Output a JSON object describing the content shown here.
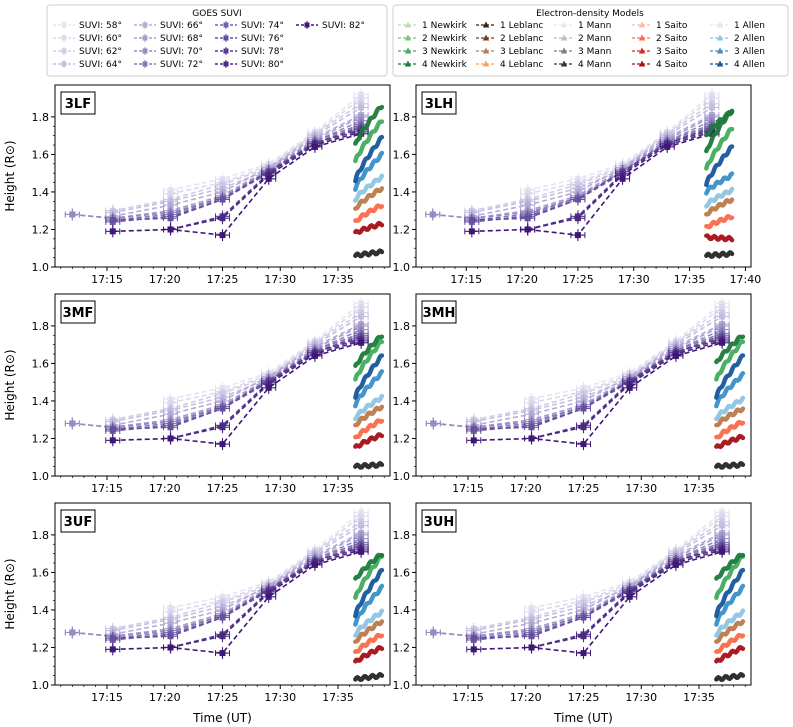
{
  "figure": {
    "xlabel": "Time (UT)",
    "ylabel": "Height (R⊙)"
  },
  "legend_suvi": {
    "title": "GOES SUVI",
    "entries": [
      "SUVI: 58°",
      "SUVI: 60°",
      "SUVI: 62°",
      "SUVI: 64°",
      "SUVI: 66°",
      "SUVI: 68°",
      "SUVI: 70°",
      "SUVI: 72°",
      "SUVI: 74°",
      "SUVI: 76°",
      "SUVI: 78°",
      "SUVI: 80°",
      "SUVI: 82°"
    ],
    "colors": [
      "#e6e3f2",
      "#dcd8ee",
      "#d0cbe7",
      "#c3bde0",
      "#b4acd7",
      "#a59ccd",
      "#958ac2",
      "#8575b6",
      "#7561a9",
      "#664f9c",
      "#57398d",
      "#4b2882",
      "#3f1777"
    ]
  },
  "legend_density": {
    "title": "Electron-density Models",
    "entries": [
      {
        "label": "1 Newkirk",
        "color": "#b5e0ae"
      },
      {
        "label": "2 Newkirk",
        "color": "#74c476"
      },
      {
        "label": "3 Newkirk",
        "color": "#41ab5d"
      },
      {
        "label": "4 Newkirk",
        "color": "#1b7a3a"
      },
      {
        "label": "1 Leblanc",
        "color": "#3d1f0c"
      },
      {
        "label": "2 Leblanc",
        "color": "#7a3b12"
      },
      {
        "label": "3 Leblanc",
        "color": "#bb7a4a"
      },
      {
        "label": "4 Leblanc",
        "color": "#f1a35d"
      },
      {
        "label": "1 Mann",
        "color": "#e8e8e8"
      },
      {
        "label": "2 Mann",
        "color": "#bdbdbd"
      },
      {
        "label": "3 Mann",
        "color": "#7f7f7f"
      },
      {
        "label": "4 Mann",
        "color": "#333333"
      },
      {
        "label": "1 Saito",
        "color": "#fcbba1"
      },
      {
        "label": "2 Saito",
        "color": "#fb6a4a"
      },
      {
        "label": "3 Saito",
        "color": "#d7261e"
      },
      {
        "label": "4 Saito",
        "color": "#a50f15"
      },
      {
        "label": "1 Allen",
        "color": "#dde6f0"
      },
      {
        "label": "2 Allen",
        "color": "#8ec4e2"
      },
      {
        "label": "3 Allen",
        "color": "#3a8fc7"
      },
      {
        "label": "4 Allen",
        "color": "#15569b"
      }
    ]
  },
  "chart_data": {
    "type": "line",
    "title": "",
    "xlabel": "Time (UT)",
    "ylabel": "Height (R⊙)",
    "x_unit": "minutes after 17:00 UT",
    "xlim_default": [
      10.5,
      39.5
    ],
    "xlim_3LH": [
      10.5,
      40.5
    ],
    "ylim": [
      1.0,
      1.97
    ],
    "xticks": [
      15,
      20,
      25,
      30,
      35
    ],
    "xtick_labels": [
      "17:15",
      "17:20",
      "17:25",
      "17:30",
      "17:35"
    ],
    "xticks_3LH": [
      15,
      20,
      25,
      30,
      35,
      40
    ],
    "xtick_labels_3LH": [
      "17:15",
      "17:20",
      "17:25",
      "17:30",
      "17:35",
      "17:40"
    ],
    "yticks": [
      1.0,
      1.2,
      1.4,
      1.6,
      1.8
    ],
    "ytick_labels": [
      "1.0",
      "1.2",
      "1.4",
      "1.6",
      "1.8"
    ],
    "suvi_series": [
      {
        "name": "SUVI: 58°",
        "x": [
          20.5,
          25,
          29,
          33,
          37
        ],
        "y": [
          1.41,
          1.47,
          1.55,
          1.72,
          1.92
        ]
      },
      {
        "name": "SUVI: 60°",
        "x": [
          20.5,
          25,
          29,
          33,
          37
        ],
        "y": [
          1.39,
          1.45,
          1.54,
          1.71,
          1.9
        ]
      },
      {
        "name": "SUVI: 62°",
        "x": [
          15.5,
          20.5,
          25,
          29,
          33,
          37
        ],
        "y": [
          1.3,
          1.36,
          1.44,
          1.53,
          1.71,
          1.87
        ]
      },
      {
        "name": "SUVI: 64°",
        "x": [
          15.5,
          20.5,
          25,
          29,
          33,
          37
        ],
        "y": [
          1.29,
          1.35,
          1.42,
          1.52,
          1.7,
          1.85
        ]
      },
      {
        "name": "SUVI: 66°",
        "x": [
          15.5,
          20.5,
          25,
          29,
          33,
          37
        ],
        "y": [
          1.27,
          1.33,
          1.4,
          1.53,
          1.69,
          1.81
        ]
      },
      {
        "name": "SUVI: 68°",
        "x": [
          12,
          15.5,
          20.5,
          25,
          29,
          33,
          37
        ],
        "y": [
          1.28,
          1.26,
          1.3,
          1.38,
          1.52,
          1.68,
          1.8
        ]
      },
      {
        "name": "SUVI: 70°",
        "x": [
          12,
          15.5,
          20.5,
          25,
          29,
          33,
          37
        ],
        "y": [
          1.28,
          1.26,
          1.29,
          1.37,
          1.51,
          1.67,
          1.78
        ]
      },
      {
        "name": "SUVI: 72°",
        "x": [
          15.5,
          20.5,
          25,
          29,
          33,
          37
        ],
        "y": [
          1.25,
          1.28,
          1.37,
          1.51,
          1.67,
          1.76
        ]
      },
      {
        "name": "SUVI: 74°",
        "x": [
          15.5,
          20.5,
          25,
          29,
          33,
          37
        ],
        "y": [
          1.24,
          1.27,
          1.36,
          1.5,
          1.66,
          1.75
        ]
      },
      {
        "name": "SUVI: 76°",
        "x": [
          15.5,
          20.5,
          25,
          29,
          33,
          37
        ],
        "y": [
          1.25,
          1.26,
          1.36,
          1.51,
          1.66,
          1.74
        ]
      },
      {
        "name": "SUVI: 78°",
        "x": [
          20.5,
          25,
          29,
          33,
          37
        ],
        "y": [
          1.2,
          1.27,
          1.5,
          1.66,
          1.73
        ]
      },
      {
        "name": "SUVI: 80°",
        "x": [
          20.5,
          25,
          29,
          33,
          37
        ],
        "y": [
          1.2,
          1.26,
          1.49,
          1.65,
          1.72
        ]
      },
      {
        "name": "SUVI: 82°",
        "x": [
          15.5,
          20.5,
          25,
          29,
          33,
          37
        ],
        "y": [
          1.19,
          1.2,
          1.17,
          1.47,
          1.64,
          1.71
        ]
      }
    ],
    "density_x_range": [
      36.5,
      38.8
    ],
    "panels": [
      {
        "label": "3LF",
        "start": [
          1.06,
          1.18,
          1.24,
          1.31,
          1.36,
          1.42,
          1.46,
          1.56,
          1.65
        ],
        "end": [
          1.08,
          1.23,
          1.33,
          1.42,
          1.48,
          1.6,
          1.69,
          1.78,
          1.86
        ]
      },
      {
        "label": "3LH",
        "start": [
          1.06,
          1.16,
          1.21,
          1.28,
          1.33,
          1.4,
          1.44,
          1.52,
          1.61,
          1.7
        ],
        "end": [
          1.07,
          1.15,
          1.27,
          1.36,
          1.41,
          1.49,
          1.64,
          1.74,
          1.84,
          1.83
        ]
      },
      {
        "label": "3MF",
        "start": [
          1.05,
          1.15,
          1.2,
          1.27,
          1.31,
          1.38,
          1.42,
          1.51,
          1.58
        ],
        "end": [
          1.06,
          1.22,
          1.3,
          1.37,
          1.42,
          1.55,
          1.64,
          1.72,
          1.75
        ]
      },
      {
        "label": "3MH",
        "start": [
          1.05,
          1.15,
          1.2,
          1.27,
          1.31,
          1.38,
          1.42,
          1.51,
          1.6
        ],
        "end": [
          1.06,
          1.21,
          1.29,
          1.36,
          1.41,
          1.54,
          1.64,
          1.72,
          1.75
        ]
      },
      {
        "label": "3UF",
        "start": [
          1.03,
          1.12,
          1.17,
          1.23,
          1.27,
          1.33,
          1.37,
          1.46,
          1.56
        ],
        "end": [
          1.05,
          1.2,
          1.27,
          1.34,
          1.39,
          1.52,
          1.61,
          1.69,
          1.7
        ]
      },
      {
        "label": "3UH",
        "start": [
          1.03,
          1.12,
          1.17,
          1.23,
          1.27,
          1.33,
          1.37,
          1.46,
          1.56
        ],
        "end": [
          1.05,
          1.2,
          1.27,
          1.34,
          1.39,
          1.52,
          1.61,
          1.69,
          1.7
        ]
      }
    ],
    "band_colors": [
      "#252525",
      "#a50f15",
      "#fb6a4a",
      "#bb7a4a",
      "#8ec4e2",
      "#3a8fc7",
      "#15569b",
      "#41ab5d",
      "#1b7a3a",
      "#1b7a3a"
    ]
  }
}
